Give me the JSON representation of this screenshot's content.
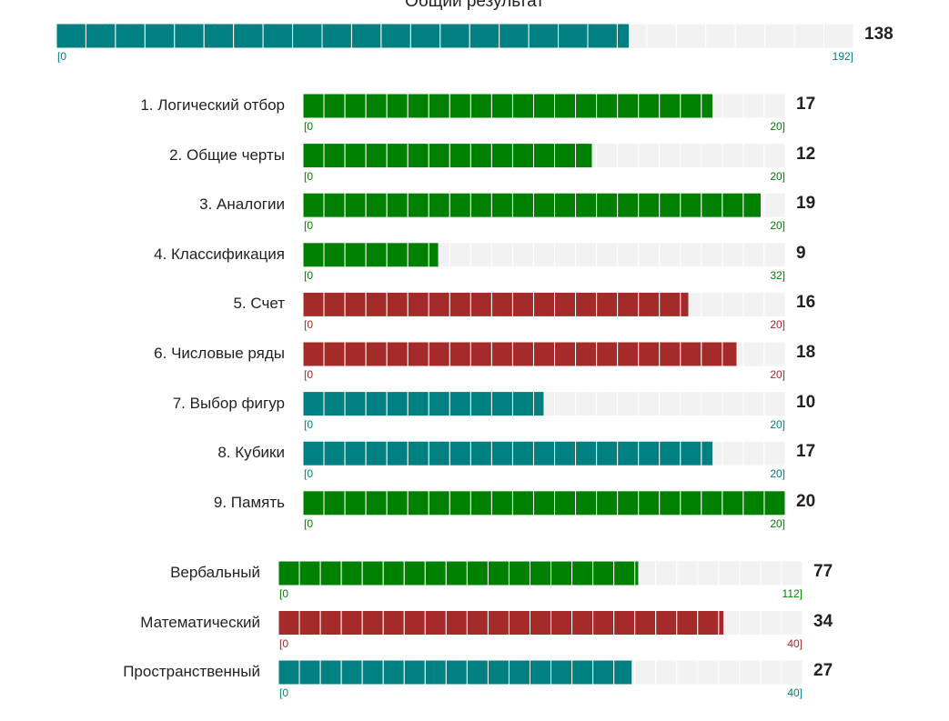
{
  "chart_data": {
    "type": "bar",
    "title": "Общий результат",
    "colors": {
      "teal": "#008080",
      "green": "#008000",
      "red": "#a52a2a",
      "track": "#f2f2f2",
      "divider": "#ffffff"
    },
    "total": {
      "value": 138,
      "min_label": "[0",
      "max_label": "192]",
      "segments": 27,
      "color": "teal"
    },
    "subtests": [
      {
        "label": "1. Логический отбор",
        "value": 17,
        "max": 20,
        "min_label": "[0",
        "max_label": "20]",
        "color": "green"
      },
      {
        "label": "2. Общие черты",
        "value": 12,
        "max": 20,
        "min_label": "[0",
        "max_label": "20]",
        "color": "green"
      },
      {
        "label": "3. Аналогии",
        "value": 19,
        "max": 20,
        "min_label": "[0",
        "max_label": "20]",
        "color": "green"
      },
      {
        "label": "4. Классификация",
        "value": 9,
        "max": 32,
        "min_label": "[0",
        "max_label": "32]",
        "color": "green"
      },
      {
        "label": "5. Счет",
        "value": 16,
        "max": 20,
        "min_label": "[0",
        "max_label": "20]",
        "color": "red"
      },
      {
        "label": "6. Числовые ряды",
        "value": 18,
        "max": 20,
        "min_label": "[0",
        "max_label": "20]",
        "color": "red"
      },
      {
        "label": "7. Выбор фигур",
        "value": 10,
        "max": 20,
        "min_label": "[0",
        "max_label": "20]",
        "color": "teal"
      },
      {
        "label": "8. Кубики",
        "value": 17,
        "max": 20,
        "min_label": "[0",
        "max_label": "20]",
        "color": "teal"
      },
      {
        "label": "9. Память",
        "value": 20,
        "max": 20,
        "min_label": "[0",
        "max_label": "20]",
        "color": "green"
      }
    ],
    "groups": [
      {
        "label": "Вербальный",
        "value": 77,
        "max": 112,
        "min_label": "[0",
        "max_label": "112]",
        "segments": 25,
        "color": "green"
      },
      {
        "label": "Математический",
        "value": 34,
        "max": 40,
        "min_label": "[0",
        "max_label": "40]",
        "segments": 25,
        "color": "red"
      },
      {
        "label": "Пространственный",
        "value": 27,
        "max": 40,
        "min_label": "[0",
        "max_label": "40]",
        "segments": 25,
        "color": "teal"
      }
    ]
  }
}
